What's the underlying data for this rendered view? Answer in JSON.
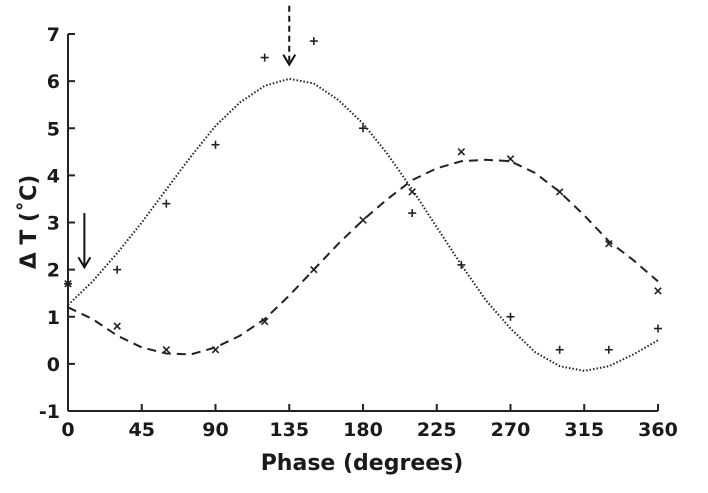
{
  "chart_data": {
    "type": "scatter",
    "xlabel": "Phase (degrees)",
    "ylabel": "Δ T (˚C)",
    "xlim": [
      0,
      360
    ],
    "ylim": [
      -1,
      7
    ],
    "xticks": [
      "0",
      "45",
      "90",
      "135",
      "180",
      "225",
      "270",
      "315",
      "360"
    ],
    "yticks": [
      "-1",
      "0",
      "1",
      "2",
      "3",
      "4",
      "5",
      "6",
      "7"
    ],
    "grid": false,
    "series": [
      {
        "marker": "plus",
        "points": [
          {
            "x": 0,
            "y": 1.7
          },
          {
            "x": 30,
            "y": 2.0
          },
          {
            "x": 60,
            "y": 3.4
          },
          {
            "x": 90,
            "y": 4.65
          },
          {
            "x": 120,
            "y": 6.5
          },
          {
            "x": 150,
            "y": 6.85
          },
          {
            "x": 180,
            "y": 5.0
          },
          {
            "x": 210,
            "y": 3.2
          },
          {
            "x": 240,
            "y": 2.1
          },
          {
            "x": 270,
            "y": 1.0
          },
          {
            "x": 300,
            "y": 0.3
          },
          {
            "x": 330,
            "y": 0.3
          },
          {
            "x": 360,
            "y": 0.75
          }
        ]
      },
      {
        "marker": "cross",
        "points": [
          {
            "x": 0,
            "y": 1.7
          },
          {
            "x": 30,
            "y": 0.8
          },
          {
            "x": 60,
            "y": 0.3
          },
          {
            "x": 90,
            "y": 0.3
          },
          {
            "x": 120,
            "y": 0.9
          },
          {
            "x": 150,
            "y": 2.0
          },
          {
            "x": 180,
            "y": 3.05
          },
          {
            "x": 210,
            "y": 3.65
          },
          {
            "x": 240,
            "y": 4.5
          },
          {
            "x": 270,
            "y": 4.35
          },
          {
            "x": 300,
            "y": 3.65
          },
          {
            "x": 330,
            "y": 2.55
          },
          {
            "x": 360,
            "y": 1.55
          }
        ]
      }
    ],
    "fits": [
      {
        "style": "dotted",
        "points": [
          {
            "x": 0,
            "y": 1.25
          },
          {
            "x": 15,
            "y": 1.75
          },
          {
            "x": 30,
            "y": 2.35
          },
          {
            "x": 45,
            "y": 3.0
          },
          {
            "x": 60,
            "y": 3.7
          },
          {
            "x": 75,
            "y": 4.4
          },
          {
            "x": 90,
            "y": 5.05
          },
          {
            "x": 105,
            "y": 5.55
          },
          {
            "x": 120,
            "y": 5.9
          },
          {
            "x": 135,
            "y": 6.05
          },
          {
            "x": 150,
            "y": 5.95
          },
          {
            "x": 165,
            "y": 5.6
          },
          {
            "x": 180,
            "y": 5.1
          },
          {
            "x": 195,
            "y": 4.45
          },
          {
            "x": 210,
            "y": 3.7
          },
          {
            "x": 225,
            "y": 2.9
          },
          {
            "x": 240,
            "y": 2.1
          },
          {
            "x": 255,
            "y": 1.35
          },
          {
            "x": 270,
            "y": 0.75
          },
          {
            "x": 285,
            "y": 0.25
          },
          {
            "x": 300,
            "y": -0.05
          },
          {
            "x": 315,
            "y": -0.15
          },
          {
            "x": 330,
            "y": -0.05
          },
          {
            "x": 345,
            "y": 0.2
          },
          {
            "x": 360,
            "y": 0.5
          }
        ]
      },
      {
        "style": "dashed",
        "points": [
          {
            "x": 0,
            "y": 1.2
          },
          {
            "x": 15,
            "y": 0.95
          },
          {
            "x": 30,
            "y": 0.6
          },
          {
            "x": 45,
            "y": 0.35
          },
          {
            "x": 60,
            "y": 0.22
          },
          {
            "x": 75,
            "y": 0.2
          },
          {
            "x": 90,
            "y": 0.35
          },
          {
            "x": 105,
            "y": 0.6
          },
          {
            "x": 120,
            "y": 0.95
          },
          {
            "x": 135,
            "y": 1.45
          },
          {
            "x": 150,
            "y": 2.0
          },
          {
            "x": 165,
            "y": 2.55
          },
          {
            "x": 180,
            "y": 3.05
          },
          {
            "x": 195,
            "y": 3.5
          },
          {
            "x": 210,
            "y": 3.9
          },
          {
            "x": 225,
            "y": 4.15
          },
          {
            "x": 240,
            "y": 4.3
          },
          {
            "x": 255,
            "y": 4.33
          },
          {
            "x": 270,
            "y": 4.3
          },
          {
            "x": 285,
            "y": 4.05
          },
          {
            "x": 300,
            "y": 3.65
          },
          {
            "x": 315,
            "y": 3.15
          },
          {
            "x": 330,
            "y": 2.6
          },
          {
            "x": 345,
            "y": 2.2
          },
          {
            "x": 360,
            "y": 1.75
          }
        ]
      }
    ],
    "annotations": [
      {
        "kind": "arrow",
        "style": "solid",
        "x": 10,
        "y_from": 3.2,
        "y_to": 2.05
      },
      {
        "kind": "arrow",
        "style": "dashed",
        "x": 135,
        "y_from": 7.6,
        "y_to": 6.35
      }
    ]
  }
}
